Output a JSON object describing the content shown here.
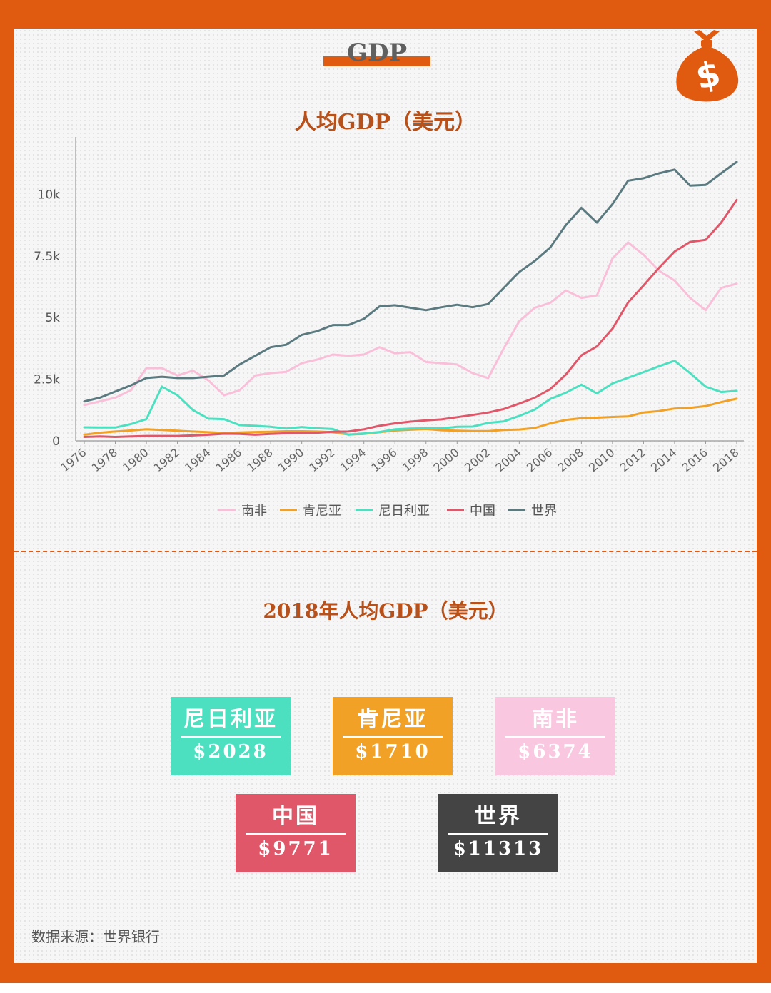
{
  "header": {
    "title": "GDP"
  },
  "colors": {
    "frame": "#e05a10",
    "title": "#b8501a"
  },
  "chart_title": "人均GDP（美元）",
  "chart_data": {
    "type": "line",
    "title": "人均GDP（美元）",
    "ylim": [
      0,
      12000
    ],
    "y_ticks": [
      0,
      2500,
      5000,
      7500,
      10000
    ],
    "y_tick_labels": [
      "0",
      "2.5k",
      "5k",
      "7.5k",
      "10k"
    ],
    "x_tick_labels": [
      "1976",
      "1978",
      "1980",
      "1982",
      "1984",
      "1986",
      "1988",
      "1990",
      "1992",
      "1994",
      "1996",
      "1998",
      "2000",
      "2002",
      "2004",
      "2006",
      "2008",
      "2010",
      "2012",
      "2014",
      "2016",
      "2018"
    ],
    "legend_position": "bottom",
    "x": [
      1976,
      1977,
      1978,
      1979,
      1980,
      1981,
      1982,
      1983,
      1984,
      1985,
      1986,
      1987,
      1988,
      1989,
      1990,
      1991,
      1992,
      1993,
      1994,
      1995,
      1996,
      1997,
      1998,
      1999,
      2000,
      2001,
      2002,
      2003,
      2004,
      2005,
      2006,
      2007,
      2008,
      2009,
      2010,
      2011,
      2012,
      2013,
      2014,
      2015,
      2016,
      2017,
      2018
    ],
    "series": [
      {
        "name": "南非",
        "color": "#f9bfd9",
        "values": [
          1450,
          1600,
          1750,
          2050,
          2950,
          2950,
          2650,
          2850,
          2450,
          1850,
          2050,
          2650,
          2750,
          2800,
          3150,
          3300,
          3500,
          3450,
          3500,
          3800,
          3550,
          3600,
          3200,
          3150,
          3100,
          2750,
          2550,
          3750,
          4850,
          5400,
          5600,
          6100,
          5800,
          5900,
          7400,
          8050,
          7550,
          6900,
          6500,
          5800,
          5300,
          6200,
          6374
        ]
      },
      {
        "name": "肯尼亚",
        "color": "#f1a125",
        "values": [
          250,
          330,
          380,
          420,
          470,
          440,
          410,
          380,
          350,
          320,
          340,
          360,
          370,
          390,
          390,
          380,
          350,
          260,
          280,
          350,
          420,
          450,
          480,
          430,
          410,
          400,
          400,
          440,
          460,
          520,
          710,
          850,
          920,
          940,
          970,
          990,
          1150,
          1210,
          1310,
          1340,
          1410,
          1570,
          1710
        ]
      },
      {
        "name": "尼日利亚",
        "color": "#4de0c0",
        "values": [
          550,
          540,
          540,
          680,
          880,
          2200,
          1850,
          1250,
          900,
          880,
          640,
          610,
          570,
          500,
          560,
          510,
          480,
          250,
          300,
          360,
          470,
          500,
          510,
          510,
          570,
          580,
          730,
          790,
          1010,
          1270,
          1700,
          1950,
          2280,
          1920,
          2330,
          2560,
          2790,
          3030,
          3250,
          2750,
          2200,
          1980,
          2028
        ]
      },
      {
        "name": "中国",
        "color": "#e0576a",
        "values": [
          160,
          180,
          160,
          180,
          200,
          200,
          200,
          220,
          250,
          290,
          280,
          250,
          280,
          310,
          320,
          330,
          370,
          380,
          470,
          610,
          710,
          780,
          830,
          870,
          960,
          1050,
          1150,
          1290,
          1510,
          1750,
          2100,
          2690,
          3470,
          3830,
          4550,
          5610,
          6300,
          7020,
          7680,
          8070,
          8150,
          8850,
          9771
        ]
      },
      {
        "name": "世界",
        "color": "#5b7a80",
        "values": [
          1600,
          1750,
          2000,
          2250,
          2550,
          2600,
          2550,
          2550,
          2600,
          2650,
          3100,
          3450,
          3800,
          3900,
          4300,
          4450,
          4700,
          4700,
          4950,
          5450,
          5500,
          5400,
          5300,
          5420,
          5520,
          5420,
          5550,
          6200,
          6850,
          7300,
          7850,
          8750,
          9450,
          8850,
          9600,
          10550,
          10650,
          10850,
          11000,
          10350,
          10380,
          10850,
          11313
        ]
      }
    ]
  },
  "section2_title": "2018年人均GDP（美元）",
  "cards": [
    {
      "name": "尼日利亚",
      "value": "$2028",
      "color": "#4de0c0"
    },
    {
      "name": "肯尼亚",
      "value": "$1710",
      "color": "#f1a125"
    },
    {
      "name": "南非",
      "value": "$6374",
      "color": "#f9c8e0"
    },
    {
      "name": "中国",
      "value": "$9771",
      "color": "#e0576a"
    },
    {
      "name": "世界",
      "value": "$11313",
      "color": "#444444"
    }
  ],
  "source": "数据来源：世界银行"
}
